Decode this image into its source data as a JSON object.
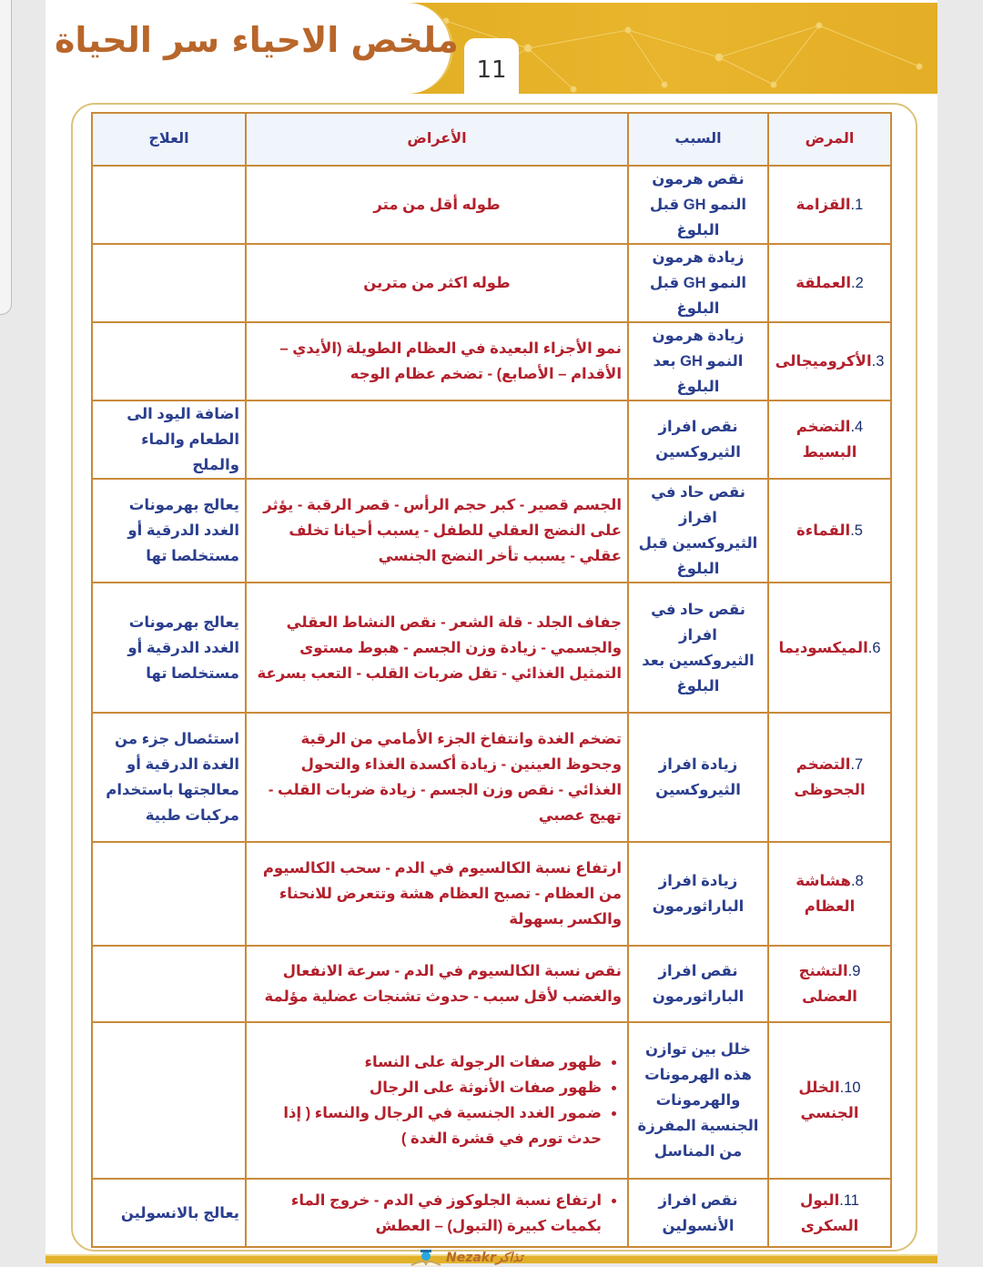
{
  "header": {
    "title": "ملخص الاحياء سر الحياة",
    "page_number": "11"
  },
  "table": {
    "headers": {
      "disease": "المرض",
      "cause": "السبب",
      "symptoms": "الأعراض",
      "treatment": "العلاج"
    },
    "rows": [
      {
        "num": "1.",
        "disease": "القزامة",
        "cause": "نقص هرمون النمو GH قبل البلوغ",
        "symptoms": "طوله أقل من متر",
        "treatment": ""
      },
      {
        "num": "2.",
        "disease": "العملقة",
        "cause": "زيادة هرمون النمو GH قبل البلوغ",
        "symptoms": "طوله اكثر من مترين",
        "treatment": ""
      },
      {
        "num": "3.",
        "disease": "الأكروميجالى",
        "cause": "زيادة هرمون النمو GH بعد البلوغ",
        "symptoms": "نمو الأجزاء البعيدة في العظام الطويلة (الأيدي – الأقدام – الأصابع) - تضخم عظام الوجه",
        "treatment": ""
      },
      {
        "num": "4.",
        "disease": "التضخم البسيط",
        "cause": "نقص افراز الثيروكسين",
        "symptoms": "",
        "treatment": "اضافة اليود الى الطعام والماء والملح"
      },
      {
        "num": "5.",
        "disease": "القماءة",
        "cause": "نقص حاد في افراز الثيروكسين قبل البلوغ",
        "symptoms": "الجسم قصير - كبر حجم الرأس - قصر الرقبة - يؤثر على النضج العقلي للطفل - يسبب أحيانا تخلف عقلي - يسبب تأخر النضج الجنسي",
        "treatment": "يعالج بهرمونات الغدد الدرقية أو مستخلصا تها"
      },
      {
        "num": "6.",
        "disease": "الميكسوديما",
        "cause": "نقص حاد في افراز الثيروكسين بعد البلوغ",
        "symptoms": "جفاف الجلد - قلة الشعر - نقص النشاط العقلي والجسمي - زيادة وزن الجسم - هبوط مستوى التمثيل الغذائي - تقل ضربات القلب - التعب بسرعة",
        "treatment": "يعالج بهرمونات الغدد الدرقية أو مستخلصا تها"
      },
      {
        "num": "7.",
        "disease": "التضخم الجحوظى",
        "cause": "زيادة افراز الثيروكسين",
        "symptoms": "تضخم الغدة وانتفاخ الجزء الأمامي من الرقبة وجحوظ العينين - زيادة أكسدة الغذاء والتحول الغذائي - نقص وزن الجسم - زيادة ضربات القلب - تهيج عصبي",
        "treatment": "استئصال جزء من الغدة الدرقية أو معالجتها باستخدام مركبات طبية"
      },
      {
        "num": "8.",
        "disease": "هشاشة العظام",
        "cause": "زيادة افراز الباراثورمون",
        "symptoms": "ارتفاع نسبة الكالسيوم في الدم - سحب الكالسيوم من العظام - تصبح العظام هشة وتتعرض للانحناء والكسر بسهولة",
        "treatment": ""
      },
      {
        "num": "9.",
        "disease": "التشنج العضلى",
        "cause": "نقص افراز الباراثورمون",
        "symptoms": "نقص نسبة الكالسيوم في الدم - سرعة الانفعال والغضب لأقل سبب - حدوث تشنجات عضلية مؤلمة",
        "treatment": ""
      },
      {
        "num": "10.",
        "disease": "الخلل الجنسي",
        "cause": "خلل بين توازن هذه الهرمونات والهرمونات الجنسية المفرزة من المناسل",
        "symptoms_list": [
          "ظهور صفات الرجولة على النساء",
          "ظهور صفات الأنوثة على الرجال",
          "ضمور الغدد الجنسية في الرجال والنساء ( إذا حدث تورم في قشرة الغدة )"
        ],
        "treatment": ""
      },
      {
        "num": "11.",
        "disease": "البول السكرى",
        "cause": "نقص افراز الأنسولين",
        "symptoms_list": [
          "ارتفاع نسبة الجلوكوز في الدم - خروج الماء بكميات كبيرة (التبول) – العطش"
        ],
        "treatment": "يعالج بالانسولين"
      }
    ]
  },
  "watermark": {
    "text": "Nezakrتذاكر"
  },
  "colors": {
    "band": "#e2ae24",
    "title": "#b8662a",
    "border": "#c98a3a",
    "disease": "#b3202c",
    "cause": "#2b3f8e"
  }
}
